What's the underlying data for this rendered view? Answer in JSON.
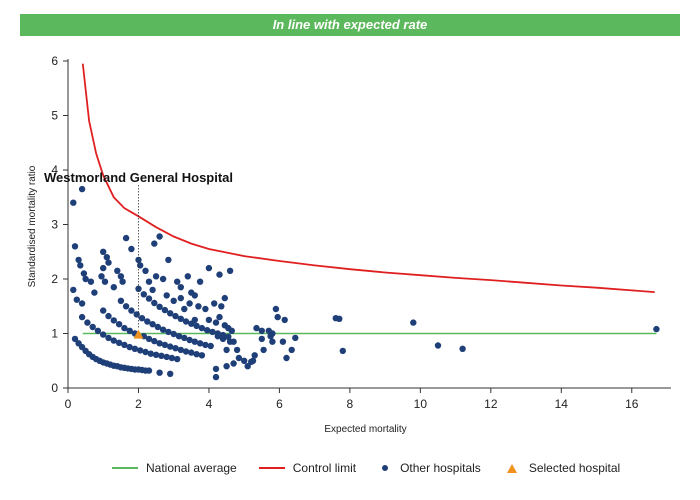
{
  "banner": {
    "text": "In line with expected rate"
  },
  "colors": {
    "banner_bg": "#5cb85c",
    "national_average": "#5cb85c",
    "control_limit": "#e02020",
    "other_hospitals": "#1f3f78",
    "selected_hospital": "#f0921e"
  },
  "legend": {
    "national_average": "National average",
    "control_limit": "Control limit",
    "other_hospitals": "Other hospitals",
    "selected_hospital": "Selected hospital"
  },
  "chart_data": {
    "type": "scatter",
    "xlabel": "Expected mortality",
    "ylabel": "Standardised mortality ratio",
    "xlim": [
      0,
      17
    ],
    "ylim": [
      0,
      6
    ],
    "xticks": [
      0,
      2,
      4,
      6,
      8,
      10,
      12,
      14,
      16
    ],
    "yticks": [
      0,
      1,
      2,
      3,
      4,
      5,
      6
    ],
    "national_average": 1,
    "control_limit": [
      [
        0.42,
        5.95
      ],
      [
        0.6,
        4.9
      ],
      [
        0.8,
        4.3
      ],
      [
        1.0,
        3.9
      ],
      [
        1.3,
        3.5
      ],
      [
        1.6,
        3.3
      ],
      [
        2.0,
        3.15
      ],
      [
        2.5,
        2.95
      ],
      [
        3.0,
        2.78
      ],
      [
        3.5,
        2.65
      ],
      [
        4.0,
        2.55
      ],
      [
        5.0,
        2.42
      ],
      [
        6.0,
        2.33
      ],
      [
        7.0,
        2.25
      ],
      [
        8.0,
        2.18
      ],
      [
        9.0,
        2.12
      ],
      [
        10.0,
        2.07
      ],
      [
        11.0,
        2.02
      ],
      [
        12.0,
        1.98
      ],
      [
        13.0,
        1.93
      ],
      [
        14.0,
        1.88
      ],
      [
        15.0,
        1.84
      ],
      [
        16.0,
        1.79
      ],
      [
        16.65,
        1.76
      ]
    ],
    "annotation": {
      "label": "Westmorland General Hospital",
      "x": 2.0,
      "y": 0.98
    },
    "series": [
      {
        "name": "Selected hospital",
        "marker": "triangle",
        "points": [
          [
            2.0,
            0.98
          ]
        ]
      },
      {
        "name": "Other hospitals",
        "marker": "circle",
        "points": [
          [
            0.15,
            3.4
          ],
          [
            0.4,
            3.65
          ],
          [
            0.2,
            2.6
          ],
          [
            0.3,
            2.35
          ],
          [
            0.35,
            2.25
          ],
          [
            0.45,
            2.1
          ],
          [
            0.5,
            2.0
          ],
          [
            0.65,
            1.95
          ],
          [
            0.15,
            1.8
          ],
          [
            0.25,
            1.62
          ],
          [
            0.4,
            1.55
          ],
          [
            0.75,
            1.75
          ],
          [
            1.0,
            2.5
          ],
          [
            1.1,
            2.4
          ],
          [
            1.15,
            2.3
          ],
          [
            0.95,
            2.05
          ],
          [
            1.05,
            1.95
          ],
          [
            1.4,
            2.15
          ],
          [
            1.5,
            2.05
          ],
          [
            1.55,
            1.95
          ],
          [
            1.65,
            2.75
          ],
          [
            1.8,
            2.55
          ],
          [
            2.0,
            2.35
          ],
          [
            2.05,
            2.25
          ],
          [
            2.2,
            2.15
          ],
          [
            2.45,
            2.65
          ],
          [
            2.6,
            2.78
          ],
          [
            2.85,
            2.35
          ],
          [
            2.3,
            1.95
          ],
          [
            2.5,
            2.05
          ],
          [
            2.7,
            2.0
          ],
          [
            3.1,
            1.95
          ],
          [
            3.4,
            2.05
          ],
          [
            3.2,
            1.85
          ],
          [
            3.5,
            1.75
          ],
          [
            3.6,
            1.7
          ],
          [
            3.75,
            1.95
          ],
          [
            4.0,
            2.2
          ],
          [
            4.3,
            2.08
          ],
          [
            4.6,
            2.15
          ],
          [
            3.2,
            1.65
          ],
          [
            3.45,
            1.55
          ],
          [
            3.7,
            1.5
          ],
          [
            3.9,
            1.45
          ],
          [
            4.15,
            1.55
          ],
          [
            4.35,
            1.5
          ],
          [
            4.45,
            1.65
          ],
          [
            3.3,
            1.45
          ],
          [
            4.0,
            1.25
          ],
          [
            4.2,
            1.2
          ],
          [
            4.45,
            1.15
          ],
          [
            4.55,
            1.1
          ],
          [
            4.65,
            1.05
          ],
          [
            4.25,
            0.95
          ],
          [
            4.4,
            0.9
          ],
          [
            4.6,
            0.85
          ],
          [
            4.7,
            0.85
          ],
          [
            4.8,
            0.7
          ],
          [
            4.85,
            0.55
          ],
          [
            5.0,
            0.5
          ],
          [
            5.1,
            0.4
          ],
          [
            5.25,
            0.5
          ],
          [
            5.3,
            0.6
          ],
          [
            5.35,
            1.1
          ],
          [
            5.5,
            1.05
          ],
          [
            5.5,
            0.9
          ],
          [
            5.55,
            0.7
          ],
          [
            5.7,
            1.05
          ],
          [
            5.75,
            0.95
          ],
          [
            5.8,
            1.0
          ],
          [
            5.8,
            0.85
          ],
          [
            5.9,
            1.45
          ],
          [
            5.95,
            1.3
          ],
          [
            6.15,
            1.25
          ],
          [
            6.1,
            0.85
          ],
          [
            6.2,
            0.55
          ],
          [
            6.35,
            0.7
          ],
          [
            6.45,
            0.92
          ],
          [
            7.6,
            1.28
          ],
          [
            7.7,
            1.27
          ],
          [
            7.8,
            0.68
          ],
          [
            9.8,
            1.2
          ],
          [
            10.5,
            0.78
          ],
          [
            11.2,
            0.72
          ],
          [
            16.7,
            1.08
          ],
          [
            4.2,
            0.35
          ],
          [
            4.2,
            0.2
          ],
          [
            4.7,
            0.45
          ],
          [
            5.2,
            0.48
          ],
          [
            4.5,
            0.4
          ],
          [
            0.2,
            0.9
          ],
          [
            0.3,
            0.82
          ],
          [
            0.4,
            0.75
          ],
          [
            0.5,
            0.68
          ],
          [
            0.6,
            0.62
          ],
          [
            0.7,
            0.57
          ],
          [
            0.8,
            0.53
          ],
          [
            0.9,
            0.5
          ],
          [
            1.0,
            0.47
          ],
          [
            1.1,
            0.45
          ],
          [
            1.2,
            0.43
          ],
          [
            1.3,
            0.41
          ],
          [
            1.4,
            0.4
          ],
          [
            1.5,
            0.38
          ],
          [
            1.6,
            0.37
          ],
          [
            1.7,
            0.36
          ],
          [
            1.8,
            0.35
          ],
          [
            1.9,
            0.34
          ],
          [
            2.0,
            0.34
          ],
          [
            2.1,
            0.33
          ],
          [
            2.2,
            0.32
          ],
          [
            2.3,
            0.32
          ],
          [
            2.6,
            0.28
          ],
          [
            2.9,
            0.26
          ],
          [
            0.4,
            1.3
          ],
          [
            0.55,
            1.2
          ],
          [
            0.7,
            1.12
          ],
          [
            0.85,
            1.05
          ],
          [
            1.0,
            0.98
          ],
          [
            1.15,
            0.92
          ],
          [
            1.3,
            0.87
          ],
          [
            1.45,
            0.83
          ],
          [
            1.6,
            0.79
          ],
          [
            1.75,
            0.75
          ],
          [
            1.9,
            0.72
          ],
          [
            2.05,
            0.69
          ],
          [
            2.2,
            0.66
          ],
          [
            2.35,
            0.63
          ],
          [
            2.5,
            0.61
          ],
          [
            2.65,
            0.59
          ],
          [
            2.8,
            0.57
          ],
          [
            2.95,
            0.55
          ],
          [
            3.1,
            0.53
          ],
          [
            1.0,
            1.42
          ],
          [
            1.15,
            1.32
          ],
          [
            1.3,
            1.24
          ],
          [
            1.45,
            1.17
          ],
          [
            1.6,
            1.1
          ],
          [
            1.75,
            1.05
          ],
          [
            1.9,
            1.0
          ],
          [
            2.15,
            0.95
          ],
          [
            2.3,
            0.9
          ],
          [
            2.45,
            0.86
          ],
          [
            2.6,
            0.82
          ],
          [
            2.75,
            0.79
          ],
          [
            2.9,
            0.76
          ],
          [
            3.05,
            0.73
          ],
          [
            3.2,
            0.7
          ],
          [
            3.35,
            0.67
          ],
          [
            3.5,
            0.65
          ],
          [
            3.65,
            0.62
          ],
          [
            3.8,
            0.6
          ],
          [
            1.5,
            1.6
          ],
          [
            1.65,
            1.5
          ],
          [
            1.8,
            1.42
          ],
          [
            1.95,
            1.35
          ],
          [
            2.1,
            1.28
          ],
          [
            2.25,
            1.22
          ],
          [
            2.4,
            1.17
          ],
          [
            2.55,
            1.12
          ],
          [
            2.7,
            1.07
          ],
          [
            2.85,
            1.03
          ],
          [
            3.0,
            0.99
          ],
          [
            3.15,
            0.95
          ],
          [
            3.3,
            0.92
          ],
          [
            3.45,
            0.88
          ],
          [
            3.6,
            0.85
          ],
          [
            3.75,
            0.82
          ],
          [
            3.9,
            0.79
          ],
          [
            4.05,
            0.77
          ],
          [
            2.0,
            1.82
          ],
          [
            2.15,
            1.72
          ],
          [
            2.3,
            1.64
          ],
          [
            2.45,
            1.56
          ],
          [
            2.6,
            1.49
          ],
          [
            2.75,
            1.43
          ],
          [
            2.9,
            1.37
          ],
          [
            3.05,
            1.32
          ],
          [
            3.2,
            1.27
          ],
          [
            3.35,
            1.22
          ],
          [
            3.5,
            1.18
          ],
          [
            3.65,
            1.14
          ],
          [
            3.8,
            1.1
          ],
          [
            3.95,
            1.06
          ],
          [
            4.1,
            1.03
          ],
          [
            4.25,
            1.0
          ],
          [
            4.4,
            0.97
          ],
          [
            4.55,
            0.94
          ],
          [
            1.0,
            2.2
          ],
          [
            1.3,
            1.85
          ],
          [
            2.4,
            1.8
          ],
          [
            2.8,
            1.7
          ],
          [
            3.6,
            1.25
          ],
          [
            4.3,
            1.3
          ],
          [
            4.5,
            0.7
          ],
          [
            3.0,
            1.6
          ]
        ]
      }
    ]
  }
}
